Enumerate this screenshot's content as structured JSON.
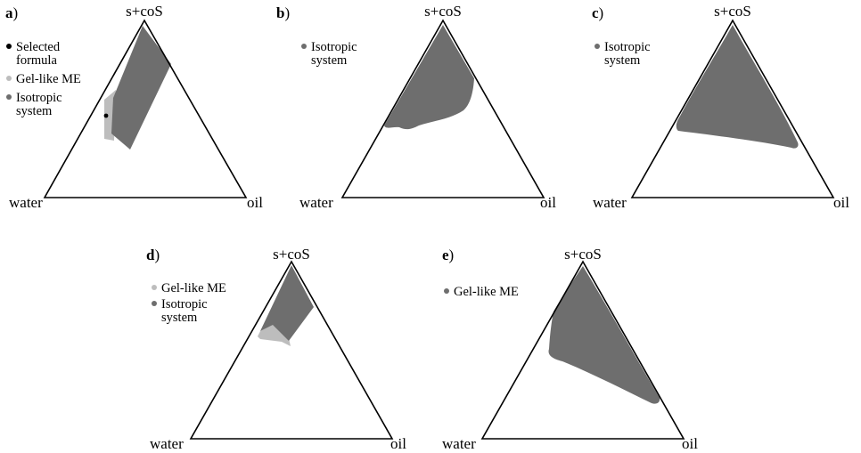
{
  "vertex_labels": {
    "top": "s+coS",
    "left": "water",
    "right": "oil"
  },
  "colors": {
    "isotropic": "#6e6e6e",
    "gel_like": "#bdbdbd",
    "selected": "#000000",
    "outline": "#000000"
  },
  "panels": [
    {
      "label": "a",
      "legend": [
        {
          "lines": [
            "Selected",
            "formula"
          ],
          "color_key": "selected"
        },
        {
          "lines": [
            "Gel-like ME"
          ],
          "color_key": "gel_like"
        },
        {
          "lines": [
            "Isotropic",
            "system"
          ],
          "color_key": "isotropic"
        }
      ]
    },
    {
      "label": "b",
      "legend": [
        {
          "lines": [
            "Isotropic",
            "system"
          ],
          "color_key": "isotropic"
        }
      ]
    },
    {
      "label": "c",
      "legend": [
        {
          "lines": [
            "Isotropic",
            "system"
          ],
          "color_key": "isotropic"
        }
      ]
    },
    {
      "label": "d",
      "legend": [
        {
          "lines": [
            "Gel-like ME"
          ],
          "color_key": "gel_like"
        },
        {
          "lines": [
            "Isotropic",
            "system"
          ],
          "color_key": "isotropic"
        }
      ]
    },
    {
      "label": "e",
      "legend": [
        {
          "lines": [
            "Gel-like ME"
          ],
          "color_key": "isotropic"
        }
      ]
    }
  ]
}
